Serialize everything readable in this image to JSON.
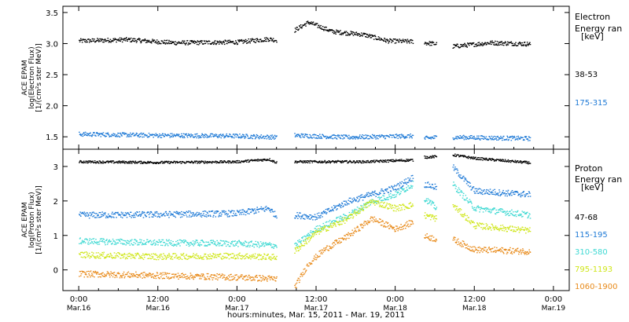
{
  "chart_data": [
    {
      "type": "scatter",
      "ylabel": [
        "ACE EPAM",
        "log(Electron Flux)",
        "[1/(cm²s ster MeV)]"
      ],
      "ylim": [
        1.3,
        3.6
      ],
      "yticks": [
        1.5,
        2.0,
        2.5,
        3.0,
        3.5
      ],
      "tick_labels": [
        "1.5",
        "2.0",
        "2.5",
        "3.0",
        "3.5"
      ],
      "legend_title": [
        "Electron",
        "Energy ran",
        "[keV]"
      ],
      "legend_placement": "right",
      "series": [
        {
          "name": "38-53",
          "color": "#000000",
          "gaps": [
            [
              1.25,
              1.36
            ],
            [
              2.11,
              2.18
            ],
            [
              2.26,
              2.36
            ]
          ],
          "x": [
            0.0,
            0.3,
            0.6,
            1.0,
            1.2,
            1.25,
            1.36,
            1.45,
            1.6,
            1.8,
            1.95,
            2.11,
            2.18,
            2.26,
            2.36,
            2.6,
            2.85
          ],
          "y": [
            3.05,
            3.07,
            3.02,
            3.03,
            3.08,
            3.06,
            3.22,
            3.35,
            3.2,
            3.15,
            3.05,
            3.04,
            3.02,
            3.0,
            2.96,
            3.02,
            3.0
          ]
        },
        {
          "name": "175-315",
          "color": "#1f7ad6",
          "gaps": [
            [
              1.25,
              1.36
            ],
            [
              2.11,
              2.18
            ],
            [
              2.26,
              2.36
            ]
          ],
          "x": [
            0.0,
            0.5,
            1.0,
            1.25,
            1.36,
            1.7,
            2.11,
            2.18,
            2.26,
            2.36,
            2.85
          ],
          "y": [
            1.55,
            1.53,
            1.52,
            1.5,
            1.53,
            1.5,
            1.52,
            1.48,
            1.5,
            1.5,
            1.48
          ]
        }
      ]
    },
    {
      "type": "scatter",
      "xlabel": "hours:minutes, Mar. 15, 2011 - Mar. 19, 2011",
      "ylabel": [
        "ACE EPAM",
        "log(Proton Flux)",
        "[1/(cm²s ster MeV)]"
      ],
      "ylim": [
        -0.6,
        3.5
      ],
      "yticks": [
        0,
        1,
        2,
        3
      ],
      "tick_labels": [
        "0",
        "1",
        "2",
        "3"
      ],
      "xlim": [
        -0.1,
        3.1
      ],
      "xticks": [
        0,
        0.5,
        1,
        1.5,
        2,
        2.5,
        3
      ],
      "xtick_labels": [
        [
          "0:00",
          "Mar.16"
        ],
        [
          "12:00",
          "Mar.16"
        ],
        [
          "0:00",
          "Mar.17"
        ],
        [
          "12:00",
          "Mar.17"
        ],
        [
          "0:00",
          "Mar.18"
        ],
        [
          "12:00",
          "Mar.18"
        ],
        [
          "0:00",
          "Mar.19"
        ]
      ],
      "legend_title": [
        "Proton",
        "Energy ran",
        "[keV]"
      ],
      "legend_placement": "right",
      "series": [
        {
          "name": "47-68",
          "color": "#000000",
          "gaps": [
            [
              1.25,
              1.36
            ],
            [
              2.11,
              2.18
            ],
            [
              2.26,
              2.36
            ]
          ],
          "x": [
            0.0,
            0.5,
            1.0,
            1.2,
            1.25,
            1.36,
            1.8,
            2.11,
            2.18,
            2.26,
            2.36,
            2.5,
            2.85
          ],
          "y": [
            3.15,
            3.13,
            3.15,
            3.22,
            3.12,
            3.15,
            3.15,
            3.2,
            3.28,
            3.3,
            3.35,
            3.25,
            3.12
          ]
        },
        {
          "name": "115-195",
          "color": "#1f7ad6",
          "gaps": [
            [
              1.25,
              1.36
            ],
            [
              2.11,
              2.18
            ],
            [
              2.26,
              2.36
            ]
          ],
          "x": [
            0.0,
            0.5,
            1.0,
            1.2,
            1.25,
            1.36,
            1.5,
            1.7,
            1.85,
            2.0,
            2.11,
            2.18,
            2.26,
            2.36,
            2.5,
            2.85
          ],
          "y": [
            1.6,
            1.62,
            1.65,
            1.8,
            1.55,
            1.6,
            1.55,
            2.0,
            2.2,
            2.4,
            2.7,
            2.5,
            2.4,
            3.0,
            2.3,
            2.2
          ]
        },
        {
          "name": "310-580",
          "color": "#3fd9d3",
          "gaps": [
            [
              1.25,
              1.36
            ],
            [
              2.11,
              2.18
            ],
            [
              2.26,
              2.36
            ]
          ],
          "x": [
            0.0,
            0.5,
            1.0,
            1.25,
            1.36,
            1.5,
            1.7,
            1.85,
            2.0,
            2.11,
            2.18,
            2.26,
            2.36,
            2.5,
            2.85
          ],
          "y": [
            0.85,
            0.8,
            0.78,
            0.72,
            0.7,
            1.2,
            1.6,
            2.0,
            2.2,
            2.5,
            2.1,
            1.8,
            2.5,
            1.8,
            1.6
          ]
        },
        {
          "name": "795-1193",
          "color": "#cfe619",
          "gaps": [
            [
              1.25,
              1.36
            ],
            [
              2.11,
              2.18
            ],
            [
              2.26,
              2.36
            ]
          ],
          "x": [
            0.0,
            0.5,
            1.0,
            1.25,
            1.36,
            1.5,
            1.7,
            1.85,
            2.0,
            2.11,
            2.18,
            2.26,
            2.36,
            2.5,
            2.85
          ],
          "y": [
            0.45,
            0.4,
            0.42,
            0.38,
            0.55,
            1.1,
            1.5,
            2.0,
            1.8,
            1.9,
            1.6,
            1.5,
            1.9,
            1.3,
            1.15
          ]
        },
        {
          "name": "1060-1900",
          "color": "#e88a1a",
          "gaps": [
            [
              1.25,
              1.36
            ],
            [
              2.11,
              2.18
            ],
            [
              2.26,
              2.36
            ]
          ],
          "x": [
            0.0,
            0.5,
            1.0,
            1.25,
            1.36,
            1.45,
            1.55,
            1.7,
            1.85,
            2.0,
            2.11,
            2.18,
            2.26,
            2.36,
            2.5,
            2.85
          ],
          "y": [
            -0.1,
            -0.15,
            -0.2,
            -0.25,
            -0.5,
            0.2,
            0.6,
            1.0,
            1.5,
            1.2,
            1.4,
            1.0,
            0.9,
            0.9,
            0.6,
            0.55
          ]
        }
      ]
    }
  ]
}
